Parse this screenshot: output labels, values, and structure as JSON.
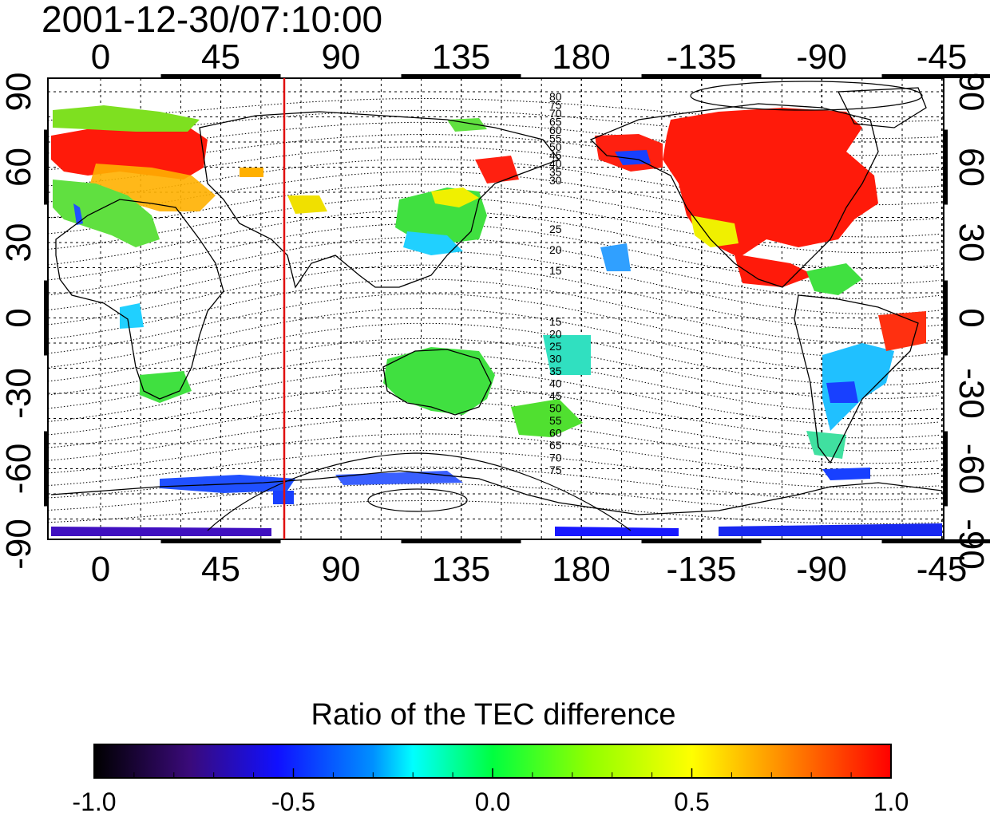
{
  "map": {
    "timestamp": "2001-12-30/07:10:00",
    "lon_ticks": [
      "0",
      "45",
      "90",
      "135",
      "180",
      "-135",
      "-90",
      "-45"
    ],
    "lat_ticks": [
      "90",
      "60",
      "30",
      "0",
      "-30",
      "-60",
      "-90"
    ],
    "highlighted_longitude_line": {
      "color": "#e01010"
    },
    "contour_labels_north": [
      "80",
      "75",
      "70",
      "65",
      "60",
      "55",
      "50",
      "45",
      "40",
      "35",
      "30",
      "25",
      "20",
      "15"
    ],
    "contour_labels_south": [
      "15",
      "20",
      "25",
      "30",
      "35",
      "40",
      "45",
      "50",
      "55",
      "60",
      "65",
      "70",
      "75"
    ],
    "ocean_color": "#ffffff",
    "coastline_color": "#000000"
  },
  "colorbar": {
    "title": "Ratio of the TEC difference",
    "tick_labels": [
      "-1.0",
      "-0.5",
      "0.0",
      "0.5",
      "1.0"
    ],
    "color_stops": [
      "#000000",
      "#4a0a8a",
      "#0000ff",
      "#00aaff",
      "#00ffe0",
      "#00ff40",
      "#a0ff00",
      "#ffff00",
      "#ff9000",
      "#ff0000"
    ]
  },
  "data_patches": [
    {
      "region": "europe",
      "color": "#ff1010"
    },
    {
      "region": "europe-south",
      "color": "#60e040"
    },
    {
      "region": "east-asia",
      "color": "#40e040"
    },
    {
      "region": "north-america",
      "color": "#ff1010"
    },
    {
      "region": "south-america",
      "color": "#20c0ff"
    },
    {
      "region": "australia",
      "color": "#40e040"
    },
    {
      "region": "antarctica",
      "color": "#2050ff"
    },
    {
      "region": "south-pole-strip",
      "color": "#4010c0"
    }
  ]
}
